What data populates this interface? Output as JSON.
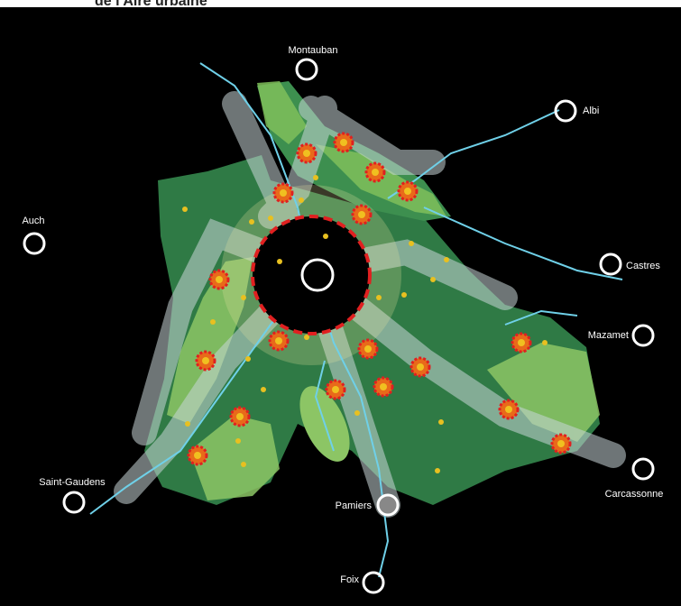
{
  "header": {
    "text": "de l'Aire urbaine"
  },
  "cities": [
    "Montauban",
    "Albi",
    "Auch",
    "Castres",
    "Mazamet",
    "Saint-Gaudens",
    "Carcassonne",
    "Pamiers",
    "Foix"
  ]
}
